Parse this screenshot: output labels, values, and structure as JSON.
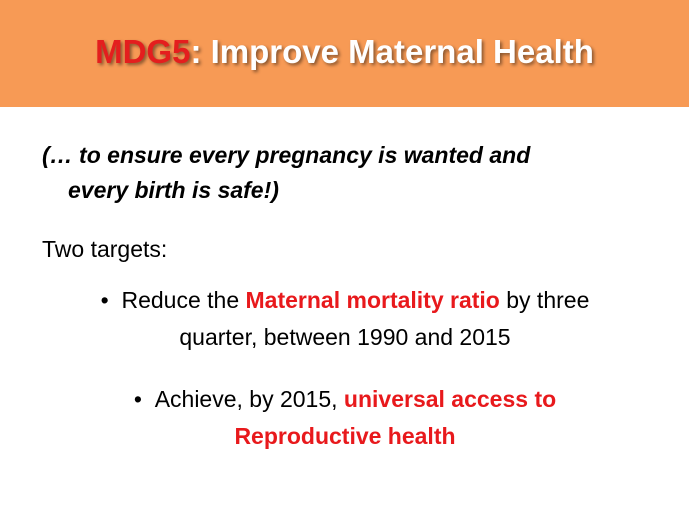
{
  "header": {
    "title": {
      "code": "MDG5",
      "rest": ": Improve Maternal Health"
    }
  },
  "body": {
    "subtitle": {
      "lines": [
        "(… to ensure every pregnancy is wanted and",
        "every birth is safe!)"
      ]
    },
    "intro": "Two targets:",
    "bullets": [
      {
        "lines": [
          [
            {
              "text": "Reduce the "
            },
            {
              "text": "Maternal mortality ratio",
              "highlight": true
            },
            {
              "text": " by three"
            }
          ],
          [
            {
              "text": "quarter, between 1990 and 2015"
            }
          ]
        ]
      },
      {
        "lines": [
          [
            {
              "text": "Achieve, by 2015, "
            },
            {
              "text": "universal access to",
              "highlight": true
            }
          ],
          [
            {
              "text": "Reproductive health",
              "highlight": true
            }
          ]
        ]
      }
    ]
  }
}
